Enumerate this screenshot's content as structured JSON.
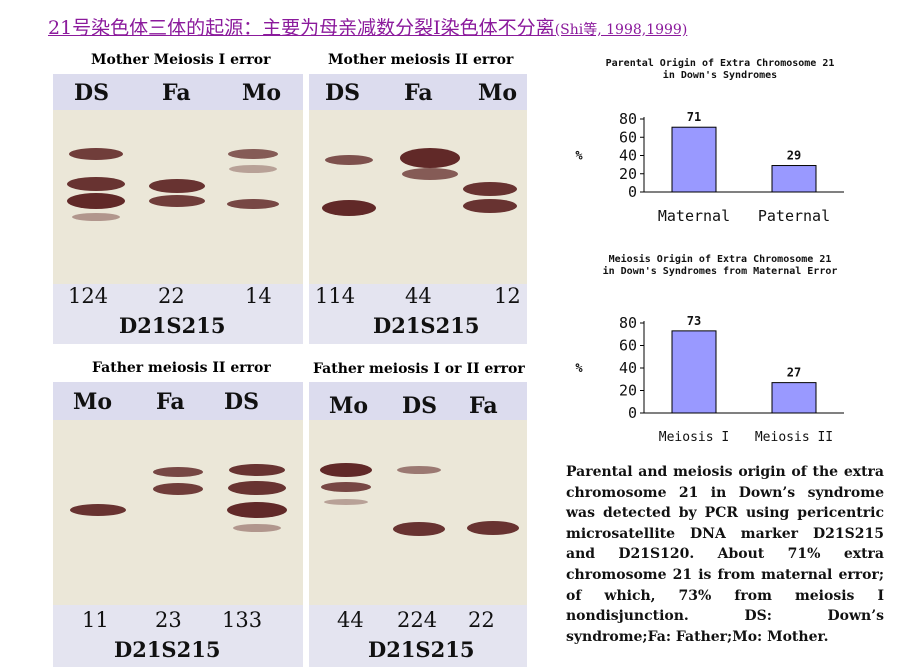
{
  "title": {
    "main": "21号染色体三体的起源：主要为母亲减数分裂I染色体不分离",
    "citation": "(Shi等, 1998,1999)"
  },
  "gels": [
    {
      "title": "Mother Meiosis I error",
      "lanes": [
        "DS",
        "Fa",
        "Mo"
      ],
      "sizes": [
        "124",
        "22",
        "14"
      ],
      "marker": "D21S215"
    },
    {
      "title": "Mother meiosis II error",
      "lanes": [
        "DS",
        "Fa",
        "Mo"
      ],
      "sizes": [
        "114",
        "44",
        "12"
      ],
      "marker": "D21S215"
    },
    {
      "title": "Father meiosis II error",
      "lanes": [
        "Mo",
        "Fa",
        "DS"
      ],
      "sizes": [
        "11",
        "23",
        "133"
      ],
      "marker": "D21S215"
    },
    {
      "title": "Father meiosis I or II error",
      "lanes": [
        "Mo",
        "DS",
        "Fa"
      ],
      "sizes": [
        "44",
        "224",
        "22"
      ],
      "marker": "D21S215"
    }
  ],
  "chart_data": [
    {
      "type": "bar",
      "title": "Parental Origin of Extra Chromosome 21 in Down's Syndromes",
      "categories": [
        "Maternal",
        "Paternal"
      ],
      "values": [
        71,
        29
      ],
      "ylabel": "%",
      "yticks": [
        0,
        20,
        40,
        60,
        80
      ],
      "ylim": [
        0,
        80
      ],
      "bar_color": "#9999ff",
      "grid": false
    },
    {
      "type": "bar",
      "title": "Meiosis Origin of Extra Chromosome 21 in Down's Syndromes from Maternal Error",
      "categories": [
        "Meiosis I",
        "Meiosis II"
      ],
      "values": [
        73,
        27
      ],
      "ylabel": "%",
      "yticks": [
        0,
        20,
        40,
        60,
        80
      ],
      "ylim": [
        0,
        80
      ],
      "bar_color": "#9999ff",
      "grid": false
    }
  ],
  "caption": "Parental and meiosis origin of the extra chromosome 21 in Down’s syndrome was detected by PCR using pericentric microsatellite DNA marker D21S215 and D21S120. About 71% extra chromosome 21 is from maternal error; of which, 73% from meiosis I nondisjunction. DS: Down’s syndrome;Fa: Father;Mo: Mother."
}
